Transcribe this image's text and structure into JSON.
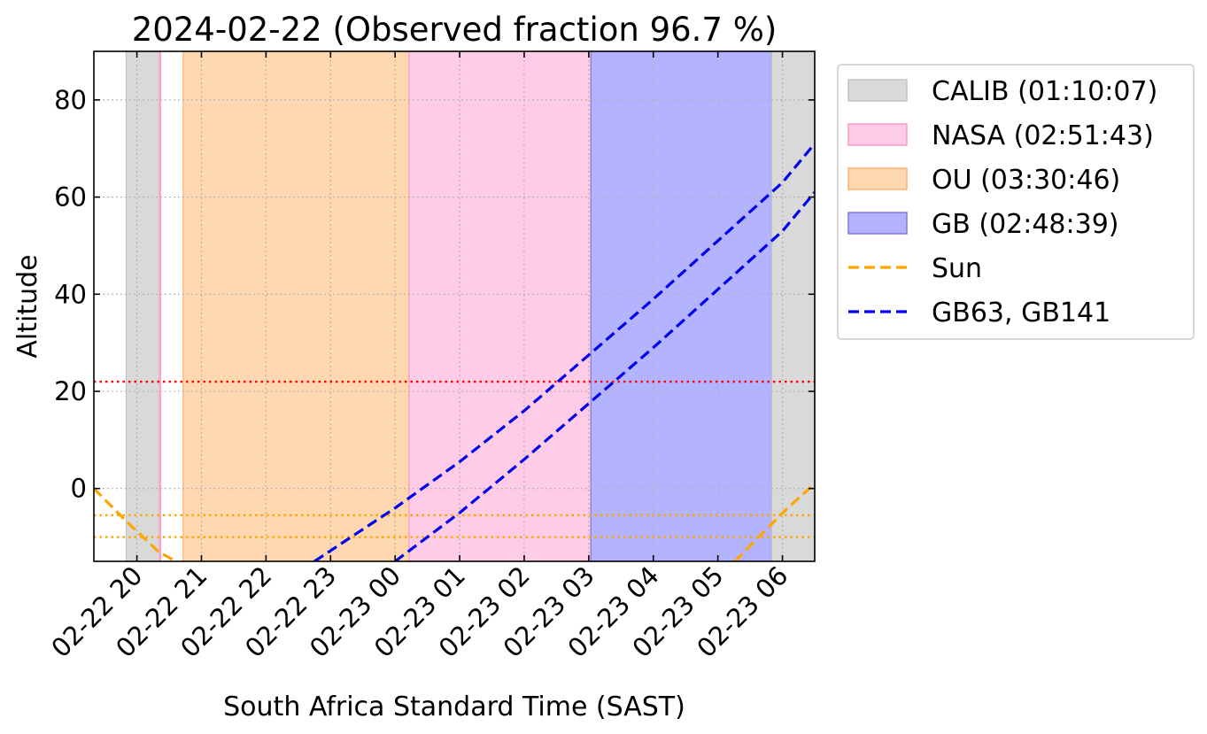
{
  "chart_data": {
    "type": "line",
    "title": "2024-02-22 (Observed fraction 96.7 %)",
    "xlabel": "South Africa Standard Time (SAST)",
    "ylabel": "Altitude",
    "xlim": [
      "2024-02-22 19:20",
      "2024-02-23 06:30"
    ],
    "ylim": [
      -15,
      90
    ],
    "grid": true,
    "legend_position": "outside-right",
    "x_tick_labels": [
      "02-22 20",
      "02-22 21",
      "02-22 22",
      "02-22 23",
      "02-23 00",
      "02-23 01",
      "02-23 02",
      "02-23 03",
      "02-23 04",
      "02-23 05",
      "02-23 06"
    ],
    "x_ticks": [
      "2024-02-22 20:00",
      "2024-02-22 21:00",
      "2024-02-22 22:00",
      "2024-02-22 23:00",
      "2024-02-23 00:00",
      "2024-02-23 01:00",
      "2024-02-23 02:00",
      "2024-02-23 03:00",
      "2024-02-23 04:00",
      "2024-02-23 05:00",
      "2024-02-23 06:00"
    ],
    "y_ticks": [
      0,
      20,
      40,
      60,
      80
    ],
    "y_tick_labels": [
      "0",
      "20",
      "40",
      "60",
      "80"
    ],
    "spans": [
      {
        "group": "CALIB",
        "from": "2024-02-22 19:50",
        "to": "2024-02-22 20:21",
        "color": "#d9d9d9",
        "edge": "#c4c4c4"
      },
      {
        "group": "NASA",
        "from": "2024-02-22 20:21",
        "to": "2024-02-22 20:22",
        "color": "#ffcce8",
        "edge": "#ff99c9"
      },
      {
        "group": "OU",
        "from": "2024-02-22 20:43",
        "to": "2024-02-23 00:13",
        "color": "#ffd7b0",
        "edge": "#ffb070"
      },
      {
        "group": "NASA",
        "from": "2024-02-23 00:13",
        "to": "2024-02-23 03:02",
        "color": "#ffcce8",
        "edge": "#ff99c9"
      },
      {
        "group": "GB",
        "from": "2024-02-23 03:02",
        "to": "2024-02-23 05:50",
        "color": "#b3b3ff",
        "edge": "#7a7ae0"
      },
      {
        "group": "CALIB",
        "from": "2024-02-23 05:50",
        "to": "2024-02-23 06:30",
        "color": "#d9d9d9",
        "edge": "#c4c4c4"
      }
    ],
    "hlines": [
      {
        "y": 22,
        "color": "#ff0000"
      },
      {
        "y": -5.5,
        "color": "#ffa500"
      },
      {
        "y": -10,
        "color": "#ffa500"
      }
    ],
    "series": [
      {
        "name": "Sun",
        "color": "#ffa500",
        "style": "dashed",
        "segments": [
          {
            "x": [
              "2024-02-22 19:20",
              "2024-02-22 19:50",
              "2024-02-22 20:20",
              "2024-02-22 20:36"
            ],
            "y": [
              0,
              -6.7,
              -13,
              -15
            ]
          },
          {
            "x": [
              "2024-02-23 05:16",
              "2024-02-23 05:40",
              "2024-02-23 06:05",
              "2024-02-23 06:30"
            ],
            "y": [
              -15,
              -9.5,
              -4,
              1
            ]
          }
        ]
      },
      {
        "name": "GB63, GB141",
        "color": "#0000ee",
        "style": "dashed",
        "segments": [
          {
            "x": [
              "2024-02-22 22:45",
              "2024-02-23 00:00",
              "2024-02-23 01:00",
              "2024-02-23 02:00",
              "2024-02-23 03:00",
              "2024-02-23 04:00",
              "2024-02-23 05:00",
              "2024-02-23 06:00",
              "2024-02-23 06:30"
            ],
            "y": [
              -15,
              -4,
              5.5,
              16,
              27.5,
              39,
              51,
              63,
              71
            ]
          },
          {
            "x": [
              "2024-02-23 00:00",
              "2024-02-23 01:00",
              "2024-02-23 02:00",
              "2024-02-23 03:00",
              "2024-02-23 04:00",
              "2024-02-23 05:00",
              "2024-02-23 06:00",
              "2024-02-23 06:30"
            ],
            "y": [
              -15,
              -5,
              6,
              17.5,
              29,
              41,
              53,
              61
            ]
          }
        ]
      }
    ],
    "legend": [
      {
        "label": "CALIB (01:10:07)",
        "kind": "patch",
        "color": "#d9d9d9",
        "edge": "#c4c4c4"
      },
      {
        "label": "NASA (02:51:43)",
        "kind": "patch",
        "color": "#ffcce8",
        "edge": "#ff99c9"
      },
      {
        "label": "OU (03:30:46)",
        "kind": "patch",
        "color": "#ffd7b0",
        "edge": "#ffb070"
      },
      {
        "label": "GB (02:48:39)",
        "kind": "patch",
        "color": "#b3b3ff",
        "edge": "#7a7ae0"
      },
      {
        "label": "Sun",
        "kind": "line",
        "color": "#ffa500"
      },
      {
        "label": "GB63, GB141",
        "kind": "line",
        "color": "#0000ee"
      }
    ]
  }
}
